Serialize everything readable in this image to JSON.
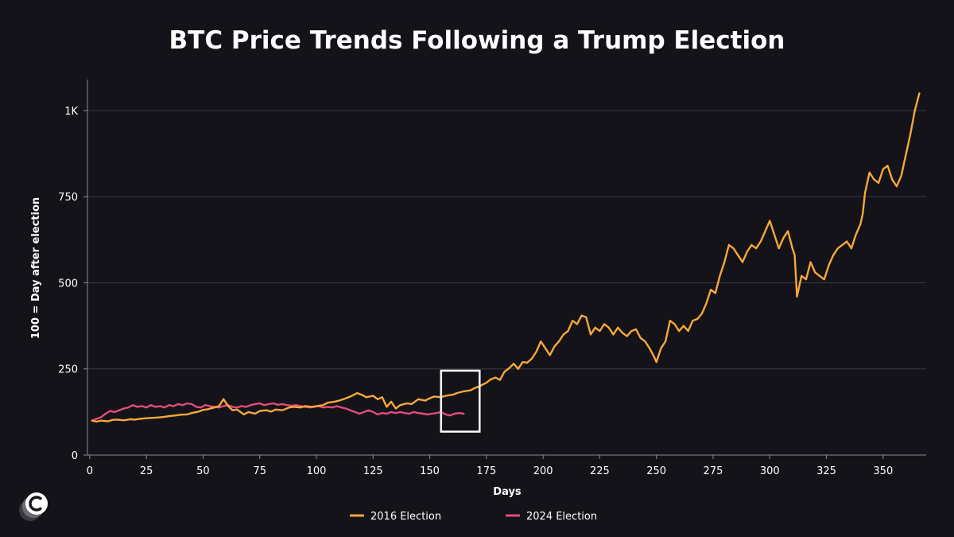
{
  "chart_data": {
    "type": "line",
    "title": "BTC Price Trends Following a Trump Election",
    "xlabel": "Days",
    "ylabel": "100 = Day after election",
    "xlim": [
      -1,
      369
    ],
    "ylim": [
      0,
      1090
    ],
    "x_ticks": [
      0,
      25,
      50,
      75,
      100,
      125,
      150,
      175,
      200,
      225,
      250,
      275,
      300,
      325,
      350
    ],
    "y_ticks": [
      0,
      250,
      500,
      750,
      1000
    ],
    "y_tick_labels": [
      "0",
      "250",
      "500",
      "750",
      "1K"
    ],
    "grid": "horizontal",
    "legend_position": "bottom",
    "highlight_box": {
      "x": [
        155,
        172
      ],
      "y": [
        68,
        245
      ]
    },
    "series": [
      {
        "name": "2016 Election",
        "color": "#f6a83a",
        "x": [
          1,
          3,
          5,
          8,
          10,
          12,
          15,
          18,
          20,
          22,
          25,
          28,
          30,
          33,
          35,
          38,
          40,
          43,
          45,
          48,
          50,
          52,
          55,
          57,
          59,
          61,
          63,
          65,
          68,
          70,
          73,
          75,
          78,
          80,
          82,
          85,
          88,
          90,
          93,
          95,
          98,
          100,
          103,
          105,
          108,
          110,
          113,
          115,
          118,
          120,
          122,
          125,
          127,
          129,
          131,
          133,
          135,
          137,
          140,
          142,
          145,
          148,
          150,
          152,
          155,
          157,
          160,
          162,
          165,
          168,
          170,
          172,
          175,
          177,
          179,
          181,
          183,
          185,
          187,
          189,
          191,
          193,
          195,
          197,
          199,
          201,
          203,
          205,
          207,
          209,
          211,
          213,
          215,
          217,
          219,
          221,
          223,
          225,
          227,
          229,
          231,
          233,
          235,
          237,
          239,
          241,
          243,
          245,
          247,
          249,
          250,
          252,
          254,
          256,
          258,
          260,
          262,
          264,
          266,
          268,
          270,
          272,
          274,
          276,
          278,
          280,
          282,
          284,
          286,
          288,
          290,
          292,
          294,
          296,
          298,
          300,
          302,
          304,
          306,
          308,
          310,
          311,
          312,
          314,
          316,
          318,
          320,
          322,
          324,
          326,
          328,
          330,
          332,
          334,
          336,
          338,
          340,
          341,
          342,
          344,
          346,
          348,
          350,
          352,
          354,
          356,
          358,
          360,
          362,
          364,
          366
        ],
        "y": [
          100,
          97,
          100,
          98,
          102,
          103,
          101,
          104,
          103,
          105,
          107,
          108,
          109,
          111,
          113,
          115,
          117,
          118,
          122,
          126,
          131,
          133,
          138,
          142,
          162,
          143,
          130,
          132,
          118,
          125,
          120,
          128,
          130,
          126,
          132,
          130,
          138,
          140,
          138,
          142,
          140,
          142,
          145,
          152,
          155,
          158,
          165,
          170,
          180,
          175,
          168,
          172,
          162,
          168,
          140,
          155,
          135,
          145,
          150,
          148,
          162,
          158,
          165,
          170,
          168,
          172,
          175,
          180,
          185,
          188,
          195,
          200,
          210,
          220,
          225,
          218,
          242,
          252,
          265,
          250,
          270,
          268,
          280,
          300,
          330,
          310,
          290,
          315,
          330,
          350,
          360,
          390,
          380,
          405,
          400,
          350,
          370,
          360,
          380,
          370,
          350,
          370,
          355,
          345,
          360,
          365,
          340,
          330,
          310,
          285,
          270,
          310,
          330,
          390,
          380,
          360,
          375,
          360,
          390,
          395,
          410,
          440,
          480,
          470,
          520,
          560,
          610,
          600,
          580,
          560,
          590,
          610,
          600,
          620,
          650,
          680,
          640,
          600,
          630,
          650,
          600,
          580,
          460,
          520,
          510,
          560,
          530,
          520,
          510,
          550,
          580,
          600,
          610,
          620,
          600,
          640,
          670,
          700,
          760,
          820,
          800,
          790,
          830,
          840,
          800,
          780,
          810,
          870,
          930,
          1000,
          1050
        ]
      },
      {
        "name": "2024 Election",
        "color": "#e14d78",
        "x": [
          1,
          3,
          5,
          7,
          9,
          11,
          13,
          15,
          17,
          19,
          21,
          23,
          25,
          27,
          29,
          31,
          33,
          35,
          37,
          39,
          41,
          43,
          45,
          47,
          49,
          51,
          53,
          55,
          57,
          59,
          61,
          63,
          65,
          67,
          69,
          71,
          73,
          75,
          77,
          79,
          81,
          83,
          85,
          87,
          89,
          91,
          93,
          95,
          97,
          99,
          101,
          103,
          105,
          107,
          109,
          111,
          113,
          115,
          117,
          119,
          121,
          123,
          125,
          127,
          129,
          131,
          133,
          135,
          137,
          139,
          141,
          143,
          145,
          147,
          149,
          151,
          153,
          155,
          157,
          159,
          161,
          163,
          165
        ],
        "y": [
          100,
          105,
          110,
          120,
          128,
          125,
          130,
          135,
          138,
          145,
          140,
          142,
          138,
          145,
          140,
          142,
          138,
          145,
          142,
          148,
          145,
          150,
          148,
          140,
          138,
          145,
          142,
          140,
          138,
          142,
          145,
          140,
          138,
          142,
          140,
          145,
          148,
          150,
          145,
          148,
          150,
          146,
          148,
          145,
          143,
          145,
          142,
          140,
          138,
          140,
          142,
          138,
          140,
          138,
          142,
          138,
          135,
          130,
          125,
          120,
          125,
          130,
          125,
          118,
          122,
          120,
          125,
          122,
          125,
          122,
          120,
          125,
          122,
          120,
          118,
          120,
          122,
          125,
          118,
          115,
          120,
          122,
          120
        ]
      }
    ]
  },
  "icons": {
    "logo": "c-logo-icon"
  }
}
